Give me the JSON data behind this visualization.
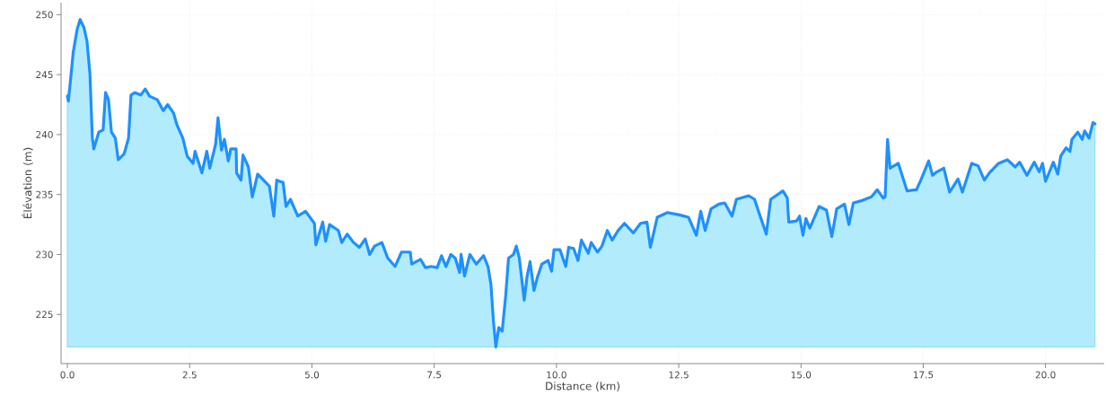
{
  "chart_data": {
    "type": "area",
    "xlabel": "Distance (km)",
    "ylabel": "Élévation (m)",
    "xlim": [
      -0.13,
      21.2
    ],
    "ylim": [
      220.9,
      251
    ],
    "xticks": [
      {
        "value": 0,
        "label": "0.0"
      },
      2.5,
      {
        "value": 5,
        "label": "5.0"
      },
      7.5,
      {
        "value": 10,
        "label": "10.0"
      },
      12.5,
      {
        "value": 15,
        "label": "15.0"
      },
      17.5,
      {
        "value": 20,
        "label": "20.0"
      }
    ],
    "yticks": [
      225,
      230,
      235,
      240,
      245,
      250
    ],
    "grid": true,
    "line_style": "solid",
    "marker": "none",
    "series": [
      {
        "color": "#1e90ff",
        "x": [
          0.0,
          0.02,
          0.06,
          0.12,
          0.2,
          0.26,
          0.34,
          0.4,
          0.46,
          0.51,
          0.54,
          0.64,
          0.73,
          0.78,
          0.84,
          0.9,
          0.98,
          1.04,
          1.16,
          1.25,
          1.3,
          1.38,
          1.5,
          1.59,
          1.68,
          1.84,
          1.96,
          2.05,
          2.17,
          2.24,
          2.36,
          2.45,
          2.57,
          2.61,
          2.75,
          2.85,
          2.91,
          3.03,
          3.08,
          3.15,
          3.21,
          3.29,
          3.34,
          3.45,
          3.46,
          3.55,
          3.59,
          3.7,
          3.78,
          3.89,
          4.01,
          4.13,
          4.22,
          4.28,
          4.41,
          4.47,
          4.56,
          4.71,
          4.87,
          5.05,
          5.08,
          5.22,
          5.28,
          5.36,
          5.54,
          5.61,
          5.72,
          5.85,
          5.97,
          6.09,
          6.18,
          6.28,
          6.43,
          6.55,
          6.7,
          6.83,
          7.01,
          7.04,
          7.22,
          7.32,
          7.44,
          7.56,
          7.65,
          7.74,
          7.84,
          7.93,
          8.02,
          8.05,
          8.12,
          8.23,
          8.36,
          8.51,
          8.6,
          8.66,
          8.71,
          8.76,
          8.82,
          8.89,
          8.96,
          9.02,
          9.12,
          9.18,
          9.24,
          9.34,
          9.4,
          9.46,
          9.54,
          9.61,
          9.7,
          9.83,
          9.9,
          9.95,
          10.07,
          10.19,
          10.25,
          10.35,
          10.44,
          10.51,
          10.65,
          10.71,
          10.84,
          10.93,
          11.04,
          11.14,
          11.26,
          11.39,
          11.57,
          11.72,
          11.85,
          11.92,
          12.06,
          12.27,
          12.52,
          12.7,
          12.86,
          12.95,
          13.04,
          13.16,
          13.32,
          13.44,
          13.59,
          13.68,
          13.93,
          14.05,
          14.14,
          14.29,
          14.38,
          14.63,
          14.72,
          14.75,
          14.91,
          14.97,
          15.04,
          15.1,
          15.18,
          15.37,
          15.52,
          15.63,
          15.73,
          15.89,
          15.98,
          16.07,
          16.25,
          16.44,
          16.56,
          16.68,
          16.72,
          16.77,
          16.82,
          16.99,
          17.17,
          17.36,
          17.45,
          17.61,
          17.69,
          17.78,
          17.92,
          18.04,
          18.21,
          18.3,
          18.49,
          18.62,
          18.75,
          18.85,
          19.04,
          19.22,
          19.38,
          19.47,
          19.62,
          19.77,
          19.87,
          19.94,
          20.0,
          20.16,
          20.25,
          20.31,
          20.42,
          20.5,
          20.54,
          20.66,
          20.75,
          20.8,
          20.89,
          20.97,
          21.01
        ],
        "values": [
          243.2,
          242.8,
          244.4,
          246.9,
          248.8,
          249.6,
          248.9,
          247.8,
          245.1,
          239.7,
          238.8,
          240.2,
          240.4,
          243.5,
          242.9,
          240.2,
          239.7,
          237.9,
          238.4,
          239.7,
          243.3,
          243.5,
          243.3,
          243.8,
          243.2,
          242.9,
          242.0,
          242.5,
          241.8,
          240.8,
          239.7,
          238.2,
          237.6,
          238.6,
          236.8,
          238.6,
          237.2,
          239.2,
          241.4,
          238.7,
          239.6,
          237.8,
          238.8,
          238.8,
          236.8,
          236.2,
          238.3,
          237.3,
          234.8,
          236.7,
          236.2,
          235.7,
          233.2,
          236.2,
          236.0,
          234.0,
          234.6,
          233.2,
          233.6,
          232.6,
          230.8,
          232.7,
          231.1,
          232.5,
          232.0,
          231.0,
          231.7,
          231.0,
          230.6,
          231.3,
          230.0,
          230.7,
          231.0,
          229.7,
          229.0,
          230.2,
          230.2,
          229.2,
          229.6,
          228.9,
          229.0,
          228.9,
          229.9,
          229.0,
          230.0,
          229.7,
          228.5,
          230.0,
          228.2,
          230.0,
          229.2,
          229.9,
          229.0,
          227.5,
          224.5,
          222.3,
          223.9,
          223.6,
          226.5,
          229.7,
          230.0,
          230.7,
          229.7,
          226.2,
          228.2,
          229.4,
          227.0,
          228.1,
          229.2,
          229.5,
          228.6,
          230.4,
          230.4,
          229.0,
          230.6,
          230.5,
          229.5,
          231.2,
          230.1,
          231.0,
          230.2,
          230.7,
          232.0,
          231.2,
          232.0,
          232.6,
          231.8,
          232.6,
          232.7,
          230.6,
          233.1,
          233.5,
          233.3,
          233.1,
          231.6,
          233.6,
          232.0,
          233.8,
          234.2,
          234.3,
          233.2,
          234.6,
          234.9,
          234.6,
          233.5,
          231.7,
          234.6,
          235.3,
          234.7,
          232.7,
          232.8,
          233.2,
          231.6,
          233.0,
          232.2,
          234.0,
          233.7,
          231.5,
          233.8,
          234.2,
          232.5,
          234.3,
          234.5,
          234.8,
          235.4,
          234.7,
          234.8,
          239.6,
          237.2,
          237.6,
          235.3,
          235.4,
          236.2,
          237.8,
          236.6,
          236.9,
          237.2,
          235.2,
          236.3,
          235.2,
          237.6,
          237.4,
          236.2,
          236.8,
          237.6,
          237.9,
          237.3,
          237.7,
          236.6,
          237.7,
          236.9,
          237.6,
          236.1,
          237.7,
          236.7,
          238.2,
          238.9,
          238.6,
          239.6,
          240.2,
          239.6,
          240.3,
          239.7,
          241.0,
          240.9
        ]
      }
    ]
  }
}
